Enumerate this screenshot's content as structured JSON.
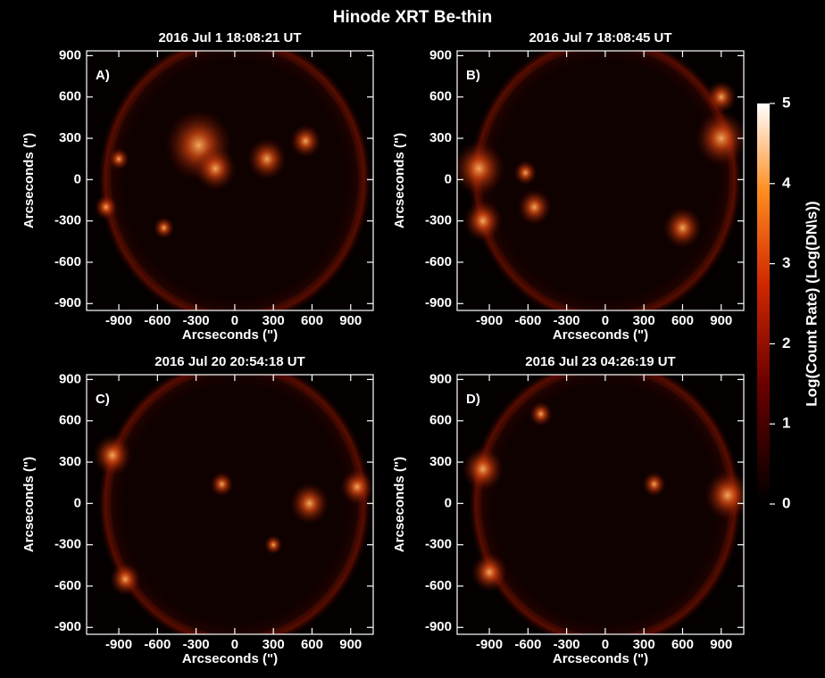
{
  "title": "Hinode XRT Be-thin",
  "chart_data": [
    {
      "type": "image",
      "title": "2016 Jul  1 18:08:21 UT",
      "panel_label": "A)",
      "xlabel": "Arcseconds (\")",
      "ylabel": "Arcseconds (\")",
      "xlim": [
        -1150,
        1075
      ],
      "ylim": [
        -950,
        935
      ],
      "xticks": [
        -900,
        -600,
        -300,
        0,
        300,
        600,
        900
      ],
      "yticks": [
        -900,
        -600,
        -300,
        0,
        300,
        600,
        900
      ]
    },
    {
      "type": "image",
      "title": "2016 Jul  7 18:08:45 UT",
      "panel_label": "B)",
      "xlabel": "Arcseconds (\")",
      "ylabel": "Arcseconds (\")",
      "xlim": [
        -1150,
        1075
      ],
      "ylim": [
        -950,
        935
      ],
      "xticks": [
        -900,
        -600,
        -300,
        0,
        300,
        600,
        900
      ],
      "yticks": [
        -900,
        -600,
        -300,
        0,
        300,
        600,
        900
      ]
    },
    {
      "type": "image",
      "title": "2016 Jul 20 20:54:18 UT",
      "panel_label": "C)",
      "xlabel": "Arcseconds (\")",
      "ylabel": "Arcseconds (\")",
      "xlim": [
        -1150,
        1075
      ],
      "ylim": [
        -950,
        935
      ],
      "xticks": [
        -900,
        -600,
        -300,
        0,
        300,
        600,
        900
      ],
      "yticks": [
        -900,
        -600,
        -300,
        0,
        300,
        600,
        900
      ]
    },
    {
      "type": "image",
      "title": "2016 Jul 23 04:26:19 UT",
      "panel_label": "D)",
      "xlabel": "Arcseconds (\")",
      "ylabel": "Arcseconds (\")",
      "xlim": [
        -1150,
        1075
      ],
      "ylim": [
        -950,
        935
      ],
      "xticks": [
        -900,
        -600,
        -300,
        0,
        300,
        600,
        900
      ],
      "yticks": [
        -900,
        -600,
        -300,
        0,
        300,
        600,
        900
      ]
    }
  ],
  "colorbar": {
    "label": "Log(Count Rate)  (Log(DN\\s))",
    "lim": [
      0,
      5
    ],
    "ticks": [
      0,
      1,
      2,
      3,
      4,
      5
    ]
  }
}
